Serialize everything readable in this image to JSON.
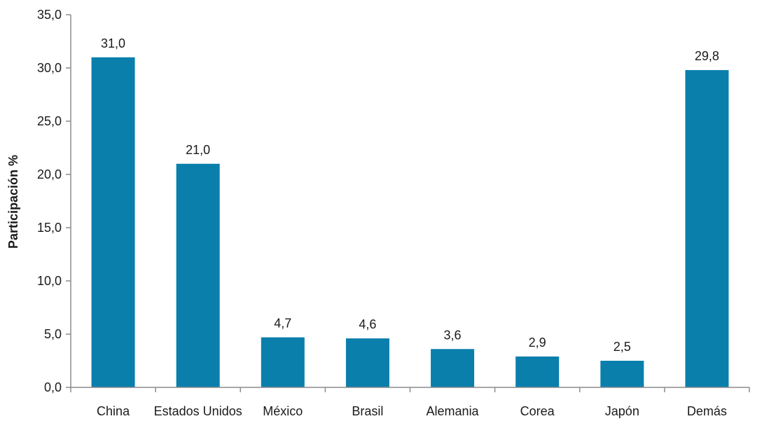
{
  "colors": {
    "bar": "#0a7fac",
    "axis": "#8c8c8c",
    "text": "#1a1a1a"
  },
  "chart_data": {
    "type": "bar",
    "title": "",
    "xlabel": "",
    "ylabel": "Participación %",
    "ylim": [
      0,
      35
    ],
    "grid": false,
    "yticks": [
      "0,0",
      "5,0",
      "10,0",
      "15,0",
      "20,0",
      "25,0",
      "30,0",
      "35,0"
    ],
    "categories": [
      "China",
      "Estados Unidos",
      "México",
      "Brasil",
      "Alemania",
      "Corea",
      "Japón",
      "Demás"
    ],
    "values": [
      31.0,
      21.0,
      4.7,
      4.6,
      3.6,
      2.9,
      2.5,
      29.8
    ],
    "data_labels": [
      "31,0",
      "21,0",
      "4,7",
      "4,6",
      "3,6",
      "2,9",
      "2,5",
      "29,8"
    ]
  }
}
